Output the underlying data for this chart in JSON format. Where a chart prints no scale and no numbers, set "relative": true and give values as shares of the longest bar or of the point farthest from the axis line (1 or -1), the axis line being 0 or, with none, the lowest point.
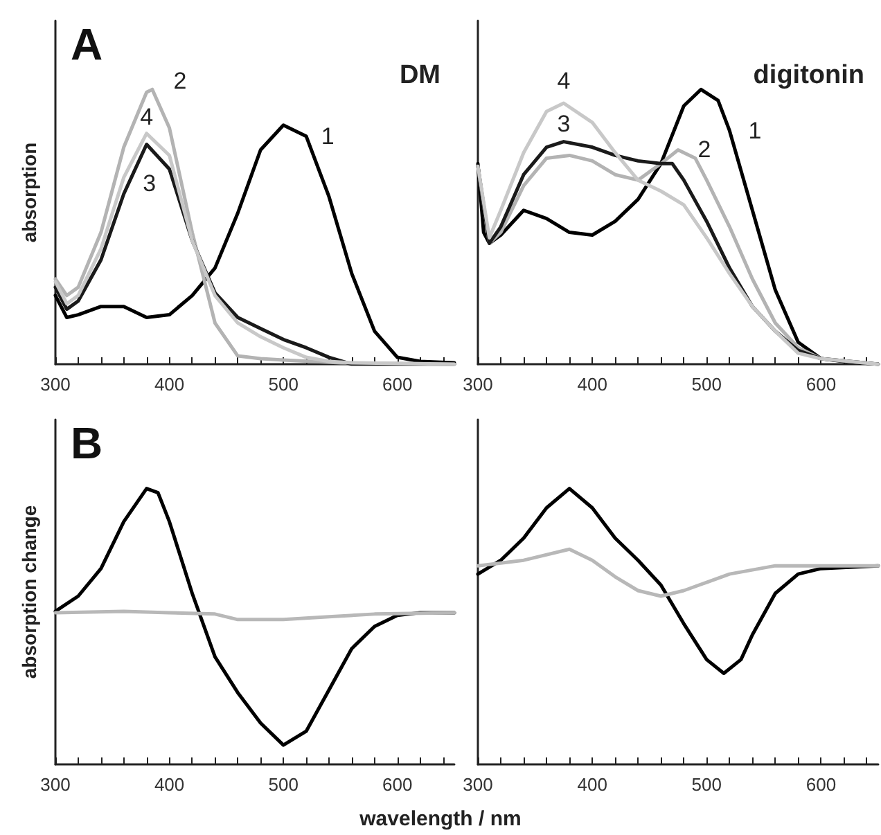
{
  "chart_data": [
    {
      "type": "line",
      "title": "A",
      "ylabel": "absorption",
      "relative": true,
      "annotations": [
        "DM"
      ],
      "xlim": [
        300,
        650
      ],
      "xticks": [
        300,
        {
          "value": 320,
          "label": null
        },
        {
          "value": 340,
          "label": null
        },
        {
          "value": 360,
          "label": null
        },
        {
          "value": 380,
          "label": null
        },
        400,
        {
          "value": 420,
          "label": null
        },
        {
          "value": 440,
          "label": null
        },
        {
          "value": 460,
          "label": null
        },
        {
          "value": 480,
          "label": null
        },
        500,
        {
          "value": 520,
          "label": null
        },
        {
          "value": 540,
          "label": null
        },
        {
          "value": 560,
          "label": null
        },
        {
          "value": 580,
          "label": null
        },
        600,
        {
          "value": 620,
          "label": null
        },
        {
          "value": 640,
          "label": null
        }
      ],
      "grid": false,
      "legend": false,
      "marker": "none",
      "line_style": "solid",
      "series": [
        {
          "name": "1",
          "color": "#000000",
          "x": [
            300,
            310,
            320,
            340,
            360,
            380,
            400,
            420,
            440,
            460,
            480,
            500,
            520,
            540,
            560,
            580,
            600,
            620,
            650
          ],
          "values": [
            0.25,
            0.17,
            0.18,
            0.21,
            0.21,
            0.17,
            0.18,
            0.25,
            0.35,
            0.55,
            0.78,
            0.87,
            0.83,
            0.61,
            0.33,
            0.12,
            0.025,
            0.01,
            0.005
          ]
        },
        {
          "name": "2",
          "color": "#b3b3b3",
          "x": [
            300,
            310,
            320,
            340,
            360,
            380,
            385,
            400,
            420,
            440,
            460,
            480,
            500,
            550,
            650
          ],
          "values": [
            0.31,
            0.25,
            0.28,
            0.48,
            0.79,
            0.99,
            1.0,
            0.86,
            0.48,
            0.15,
            0.03,
            0.02,
            0.015,
            0.005,
            0
          ]
        },
        {
          "name": "3",
          "color": "#1a1a1a",
          "x": [
            300,
            310,
            320,
            340,
            360,
            380,
            400,
            420,
            440,
            460,
            480,
            500,
            520,
            540,
            560,
            650
          ],
          "values": [
            0.28,
            0.2,
            0.23,
            0.38,
            0.62,
            0.8,
            0.71,
            0.45,
            0.26,
            0.17,
            0.13,
            0.09,
            0.06,
            0.025,
            0,
            0
          ]
        },
        {
          "name": "4",
          "color": "#c8c8c8",
          "x": [
            300,
            310,
            320,
            340,
            360,
            380,
            400,
            420,
            440,
            460,
            480,
            500,
            520,
            540,
            560,
            650
          ],
          "values": [
            0.3,
            0.22,
            0.25,
            0.42,
            0.68,
            0.84,
            0.76,
            0.45,
            0.25,
            0.15,
            0.1,
            0.06,
            0.025,
            0.01,
            0.005,
            0
          ]
        }
      ]
    },
    {
      "type": "line",
      "relative": true,
      "annotations": [
        "digitonin"
      ],
      "xlim": [
        300,
        650
      ],
      "xticks": [
        300,
        {
          "value": 320,
          "label": null
        },
        {
          "value": 340,
          "label": null
        },
        {
          "value": 360,
          "label": null
        },
        {
          "value": 380,
          "label": null
        },
        400,
        {
          "value": 420,
          "label": null
        },
        {
          "value": 440,
          "label": null
        },
        {
          "value": 460,
          "label": null
        },
        {
          "value": 480,
          "label": null
        },
        500,
        {
          "value": 520,
          "label": null
        },
        {
          "value": 540,
          "label": null
        },
        {
          "value": 560,
          "label": null
        },
        {
          "value": 580,
          "label": null
        },
        600,
        {
          "value": 620,
          "label": null
        },
        {
          "value": 640,
          "label": null
        }
      ],
      "grid": false,
      "legend": false,
      "marker": "none",
      "line_style": "solid",
      "series": [
        {
          "name": "1",
          "color": "#000000",
          "x": [
            300,
            305,
            310,
            320,
            340,
            360,
            380,
            400,
            420,
            440,
            460,
            480,
            495,
            510,
            520,
            540,
            560,
            580,
            600,
            620,
            650
          ],
          "values": [
            0.73,
            0.48,
            0.44,
            0.47,
            0.56,
            0.53,
            0.48,
            0.47,
            0.52,
            0.6,
            0.73,
            0.94,
            1.0,
            0.96,
            0.85,
            0.56,
            0.27,
            0.08,
            0.02,
            0.01,
            0
          ]
        },
        {
          "name": "2",
          "color": "#b3b3b3",
          "x": [
            300,
            310,
            320,
            340,
            360,
            380,
            400,
            420,
            440,
            460,
            475,
            490,
            500,
            520,
            540,
            560,
            580,
            600,
            650
          ],
          "values": [
            0.72,
            0.44,
            0.48,
            0.65,
            0.75,
            0.76,
            0.74,
            0.69,
            0.67,
            0.73,
            0.78,
            0.75,
            0.67,
            0.5,
            0.31,
            0.15,
            0.06,
            0.02,
            0
          ]
        },
        {
          "name": "3",
          "color": "#1a1a1a",
          "x": [
            300,
            310,
            320,
            340,
            360,
            375,
            400,
            420,
            440,
            460,
            470,
            480,
            500,
            520,
            540,
            560,
            580,
            600,
            650
          ],
          "values": [
            0.72,
            0.44,
            0.5,
            0.69,
            0.79,
            0.81,
            0.79,
            0.76,
            0.74,
            0.73,
            0.73,
            0.67,
            0.52,
            0.35,
            0.21,
            0.12,
            0.05,
            0.02,
            0
          ]
        },
        {
          "name": "4",
          "color": "#c8c8c8",
          "x": [
            300,
            310,
            320,
            340,
            360,
            375,
            400,
            420,
            440,
            460,
            480,
            500,
            520,
            540,
            560,
            580,
            600,
            650
          ],
          "values": [
            0.72,
            0.46,
            0.56,
            0.77,
            0.92,
            0.95,
            0.88,
            0.77,
            0.67,
            0.63,
            0.58,
            0.46,
            0.33,
            0.21,
            0.12,
            0.04,
            0.02,
            0
          ]
        }
      ]
    },
    {
      "type": "line",
      "title": "B",
      "ylabel": "absorption change",
      "xlabel": "wavelength / nm",
      "relative": true,
      "xlim": [
        300,
        650
      ],
      "xticks": [
        300,
        {
          "value": 320,
          "label": null
        },
        {
          "value": 340,
          "label": null
        },
        {
          "value": 360,
          "label": null
        },
        {
          "value": 380,
          "label": null
        },
        400,
        {
          "value": 420,
          "label": null
        },
        {
          "value": 440,
          "label": null
        },
        {
          "value": 460,
          "label": null
        },
        {
          "value": 480,
          "label": null
        },
        500,
        {
          "value": 520,
          "label": null
        },
        {
          "value": 540,
          "label": null
        },
        {
          "value": 560,
          "label": null
        },
        {
          "value": 580,
          "label": null
        },
        600,
        {
          "value": 620,
          "label": null
        },
        {
          "value": 640,
          "label": null
        }
      ],
      "grid": false,
      "legend": false,
      "marker": "none",
      "line_style": "solid",
      "series": [
        {
          "color": "#000000",
          "x": [
            300,
            320,
            340,
            360,
            380,
            390,
            400,
            420,
            440,
            460,
            480,
            500,
            520,
            540,
            560,
            580,
            600,
            620,
            650
          ],
          "values": [
            0.555,
            0.61,
            0.71,
            0.88,
            1.0,
            0.985,
            0.88,
            0.62,
            0.39,
            0.26,
            0.15,
            0.07,
            0.12,
            0.27,
            0.42,
            0.5,
            0.54,
            0.55,
            0.55
          ]
        },
        {
          "color": "#b8b8b8",
          "x": [
            300,
            360,
            400,
            440,
            460,
            500,
            540,
            580,
            650
          ],
          "values": [
            0.55,
            0.555,
            0.55,
            0.545,
            0.525,
            0.525,
            0.535,
            0.545,
            0.55
          ]
        }
      ]
    },
    {
      "type": "line",
      "relative": true,
      "xlim": [
        300,
        650
      ],
      "xticks": [
        300,
        {
          "value": 320,
          "label": null
        },
        {
          "value": 340,
          "label": null
        },
        {
          "value": 360,
          "label": null
        },
        {
          "value": 380,
          "label": null
        },
        400,
        {
          "value": 420,
          "label": null
        },
        {
          "value": 440,
          "label": null
        },
        {
          "value": 460,
          "label": null
        },
        {
          "value": 480,
          "label": null
        },
        500,
        {
          "value": 520,
          "label": null
        },
        {
          "value": 540,
          "label": null
        },
        {
          "value": 560,
          "label": null
        },
        {
          "value": 580,
          "label": null
        },
        600,
        {
          "value": 620,
          "label": null
        },
        {
          "value": 640,
          "label": null
        }
      ],
      "grid": false,
      "legend": false,
      "marker": "none",
      "line_style": "solid",
      "series": [
        {
          "color": "#000000",
          "x": [
            300,
            320,
            340,
            360,
            380,
            400,
            420,
            440,
            460,
            480,
            500,
            515,
            530,
            540,
            560,
            580,
            600,
            650
          ],
          "values": [
            0.69,
            0.74,
            0.82,
            0.93,
            1.0,
            0.93,
            0.82,
            0.74,
            0.65,
            0.51,
            0.38,
            0.33,
            0.38,
            0.47,
            0.62,
            0.69,
            0.71,
            0.72
          ]
        },
        {
          "color": "#b8b8b8",
          "x": [
            300,
            340,
            380,
            400,
            420,
            440,
            460,
            480,
            500,
            520,
            560,
            650
          ],
          "values": [
            0.72,
            0.74,
            0.78,
            0.74,
            0.68,
            0.63,
            0.61,
            0.63,
            0.66,
            0.69,
            0.72,
            0.72
          ]
        }
      ]
    }
  ]
}
